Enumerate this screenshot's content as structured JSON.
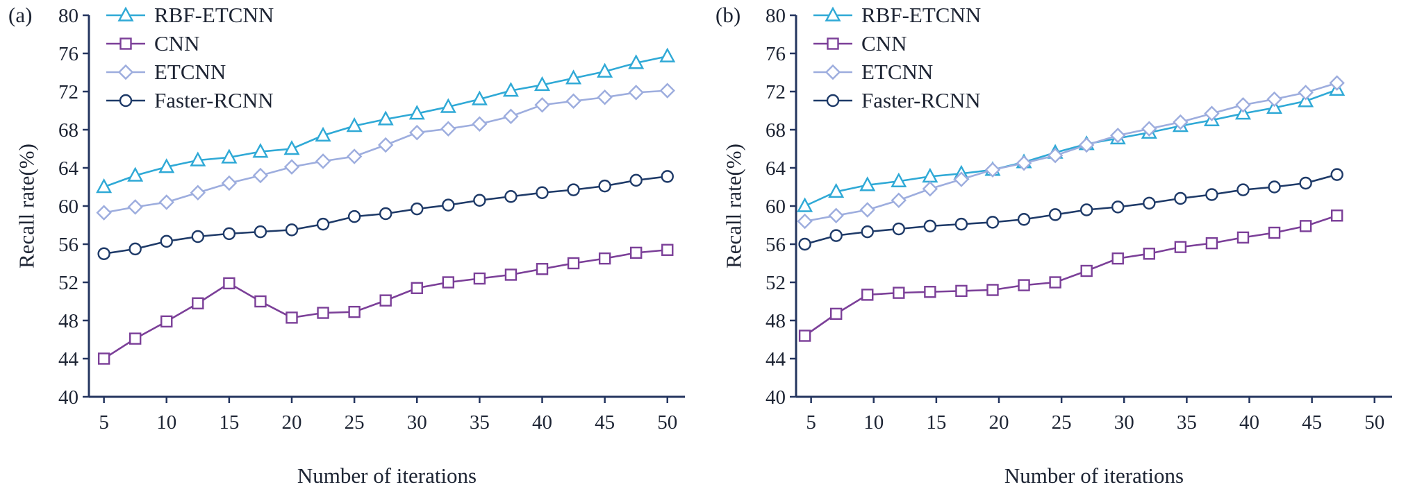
{
  "colors": {
    "background": "#ffffff",
    "axis": "#24355f",
    "text": "#1d2433",
    "rbf_etcnn": "#2fa9d6",
    "cnn": "#7b3f98",
    "etcnn": "#9dadde",
    "faster_rcnn": "#1e3a68"
  },
  "chart_data": [
    {
      "type": "line",
      "panel_label": "(a)",
      "xlabel": "Number of iterations",
      "ylabel": "Recall rate(%)",
      "xlim": [
        3.8,
        51.4
      ],
      "ylim": [
        40,
        80
      ],
      "xticks": [
        5,
        10,
        15,
        20,
        25,
        30,
        35,
        40,
        45,
        50
      ],
      "yticks": [
        40,
        44,
        48,
        52,
        56,
        60,
        64,
        68,
        72,
        76,
        80
      ],
      "grid": false,
      "legend_position": "upper-left-inside",
      "x": [
        5,
        7.5,
        10,
        12.5,
        15,
        17.5,
        20,
        22.5,
        25,
        27.5,
        30,
        32.5,
        35,
        37.5,
        40,
        42.5,
        45,
        47.5,
        50
      ],
      "series": [
        {
          "name": "RBF-ETCNN",
          "marker": "triangle",
          "color": "#2fa9d6",
          "values": [
            62.0,
            63.2,
            64.1,
            64.8,
            65.1,
            65.7,
            66.0,
            67.4,
            68.4,
            69.1,
            69.7,
            70.4,
            71.2,
            72.1,
            72.7,
            73.4,
            74.1,
            75.0,
            75.7
          ]
        },
        {
          "name": "CNN",
          "marker": "square",
          "color": "#7b3f98",
          "values": [
            44.0,
            46.1,
            47.9,
            49.8,
            51.9,
            50.0,
            48.3,
            48.8,
            48.9,
            50.1,
            51.4,
            52.0,
            52.4,
            52.8,
            53.4,
            54.0,
            54.5,
            55.1,
            55.4
          ]
        },
        {
          "name": "ETCNN",
          "marker": "diamond",
          "color": "#9dadde",
          "values": [
            59.3,
            59.9,
            60.4,
            61.4,
            62.4,
            63.2,
            64.1,
            64.7,
            65.2,
            66.4,
            67.7,
            68.1,
            68.6,
            69.4,
            70.6,
            71.0,
            71.4,
            71.9,
            72.1
          ]
        },
        {
          "name": "Faster-RCNN",
          "marker": "circle",
          "color": "#1e3a68",
          "values": [
            55.0,
            55.5,
            56.3,
            56.8,
            57.1,
            57.3,
            57.5,
            58.1,
            58.9,
            59.2,
            59.7,
            60.1,
            60.6,
            61.0,
            61.4,
            61.7,
            62.1,
            62.7,
            63.1
          ]
        }
      ]
    },
    {
      "type": "line",
      "panel_label": "(b)",
      "xlabel": "Number of iterations",
      "ylabel": "Recall rate(%)",
      "xlim": [
        3.8,
        51.4
      ],
      "ylim": [
        40,
        80
      ],
      "xticks": [
        5,
        10,
        15,
        20,
        25,
        30,
        35,
        40,
        45,
        50
      ],
      "yticks": [
        40,
        44,
        48,
        52,
        56,
        60,
        64,
        68,
        72,
        76,
        80
      ],
      "grid": false,
      "legend_position": "upper-left-inside",
      "x": [
        4.5,
        7,
        9.5,
        12,
        14.5,
        17,
        19.5,
        22,
        24.5,
        27,
        29.5,
        32,
        34.5,
        37,
        39.5,
        42,
        44.5,
        47
      ],
      "series": [
        {
          "name": "RBF-ETCNN",
          "marker": "triangle",
          "color": "#2fa9d6",
          "values": [
            60.0,
            61.5,
            62.2,
            62.6,
            63.1,
            63.4,
            63.8,
            64.6,
            65.6,
            66.5,
            67.1,
            67.7,
            68.4,
            69.0,
            69.7,
            70.3,
            71.0,
            72.2
          ]
        },
        {
          "name": "CNN",
          "marker": "square",
          "color": "#7b3f98",
          "values": [
            46.4,
            48.7,
            50.7,
            50.9,
            51.0,
            51.1,
            51.2,
            51.7,
            52.0,
            53.2,
            54.5,
            55.0,
            55.7,
            56.1,
            56.7,
            57.2,
            57.9,
            59.0
          ]
        },
        {
          "name": "ETCNN",
          "marker": "diamond",
          "color": "#9dadde",
          "values": [
            58.4,
            59.0,
            59.6,
            60.6,
            61.8,
            62.8,
            63.8,
            64.5,
            65.3,
            66.4,
            67.4,
            68.1,
            68.8,
            69.7,
            70.6,
            71.2,
            71.9,
            72.9
          ]
        },
        {
          "name": "Faster-RCNN",
          "marker": "circle",
          "color": "#1e3a68",
          "values": [
            56.0,
            56.9,
            57.3,
            57.6,
            57.9,
            58.1,
            58.3,
            58.6,
            59.1,
            59.6,
            59.9,
            60.3,
            60.8,
            61.2,
            61.7,
            62.0,
            62.4,
            63.3
          ]
        }
      ]
    }
  ]
}
